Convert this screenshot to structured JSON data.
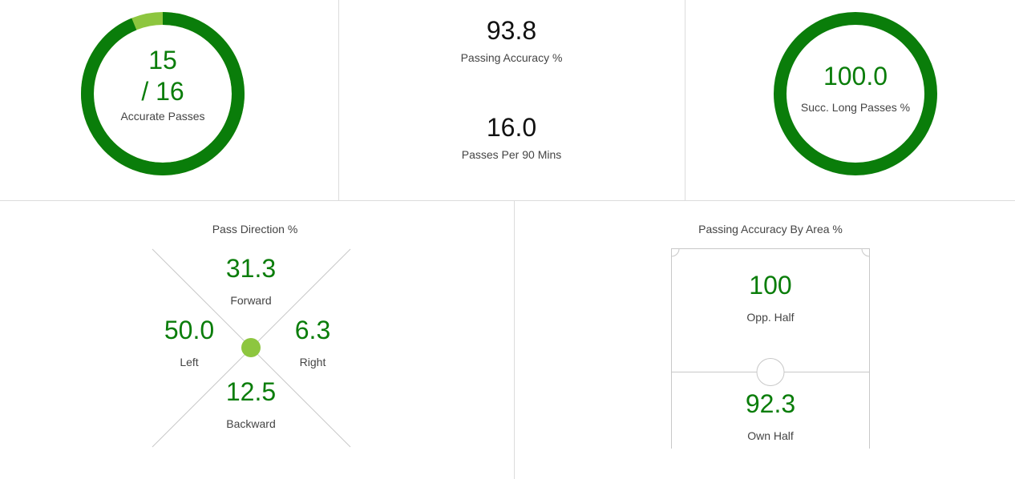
{
  "accurate_passes": {
    "numerator": "15",
    "denominator": "/ 16",
    "label": "Accurate Passes",
    "fraction": 0.9375,
    "color_main": "#0a7d0a",
    "color_remainder": "#8dc63f"
  },
  "passing_accuracy": {
    "value": "93.8",
    "label": "Passing Accuracy %"
  },
  "passes_per_90": {
    "value": "16.0",
    "label": "Passes Per 90 Mins"
  },
  "long_passes": {
    "value": "100.0",
    "label": "Succ. Long Passes %",
    "fraction": 1.0,
    "color_main": "#0a7d0a"
  },
  "pass_direction": {
    "title": "Pass Direction %",
    "forward": {
      "value": "31.3",
      "label": "Forward"
    },
    "left": {
      "value": "50.0",
      "label": "Left"
    },
    "right": {
      "value": "6.3",
      "label": "Right"
    },
    "backward": {
      "value": "12.5",
      "label": "Backward"
    },
    "dot_color": "#8dc63f"
  },
  "accuracy_by_area": {
    "title": "Passing Accuracy By Area %",
    "opp_half": {
      "value": "100",
      "label": "Opp. Half"
    },
    "own_half": {
      "value": "92.3",
      "label": "Own Half"
    }
  }
}
